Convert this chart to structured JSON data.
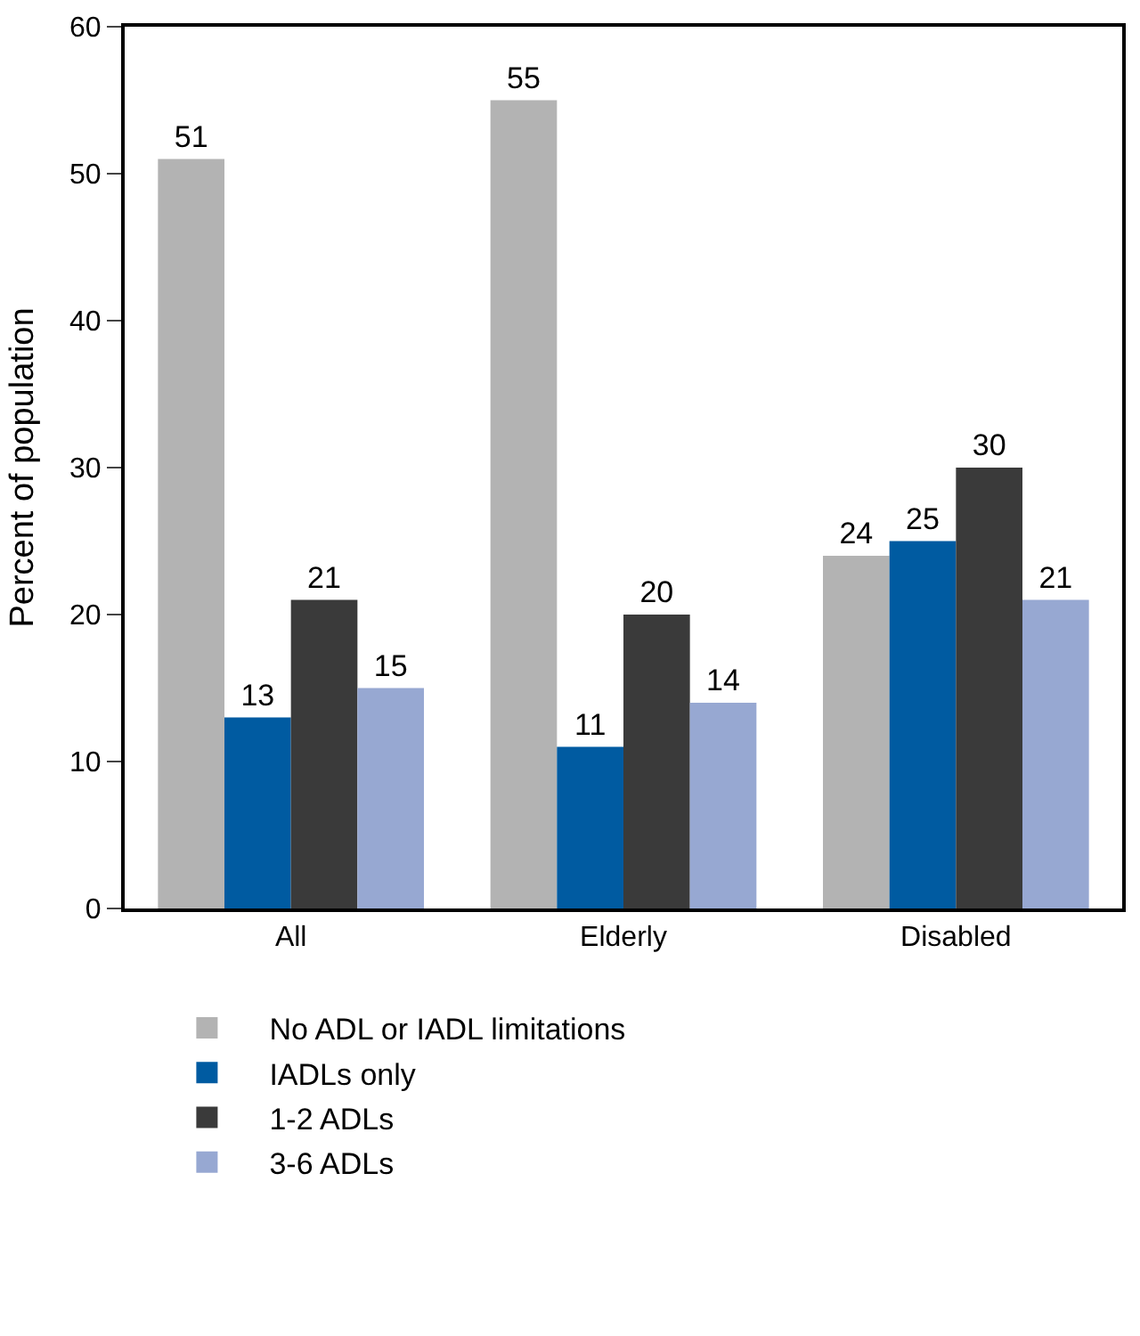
{
  "chart_data": {
    "type": "bar",
    "ylabel": "Percent of population",
    "categories": [
      "All",
      "Elderly",
      "Disabled"
    ],
    "series": [
      {
        "name": "No ADL or IADL limitations",
        "color": "#b3b3b3",
        "values": [
          51,
          55,
          24
        ]
      },
      {
        "name": "IADLs only",
        "color": "#005ba1",
        "values": [
          13,
          11,
          25
        ]
      },
      {
        "name": "1-2 ADLs",
        "color": "#3a3a3a",
        "values": [
          21,
          20,
          30
        ]
      },
      {
        "name": "3-6 ADLs",
        "color": "#97a8d2",
        "values": [
          15,
          14,
          21
        ]
      }
    ],
    "ylim": [
      0,
      60
    ],
    "yticks": [
      0,
      10,
      20,
      30,
      40,
      50,
      60
    ],
    "data_labels": true,
    "legend": "bottom"
  }
}
